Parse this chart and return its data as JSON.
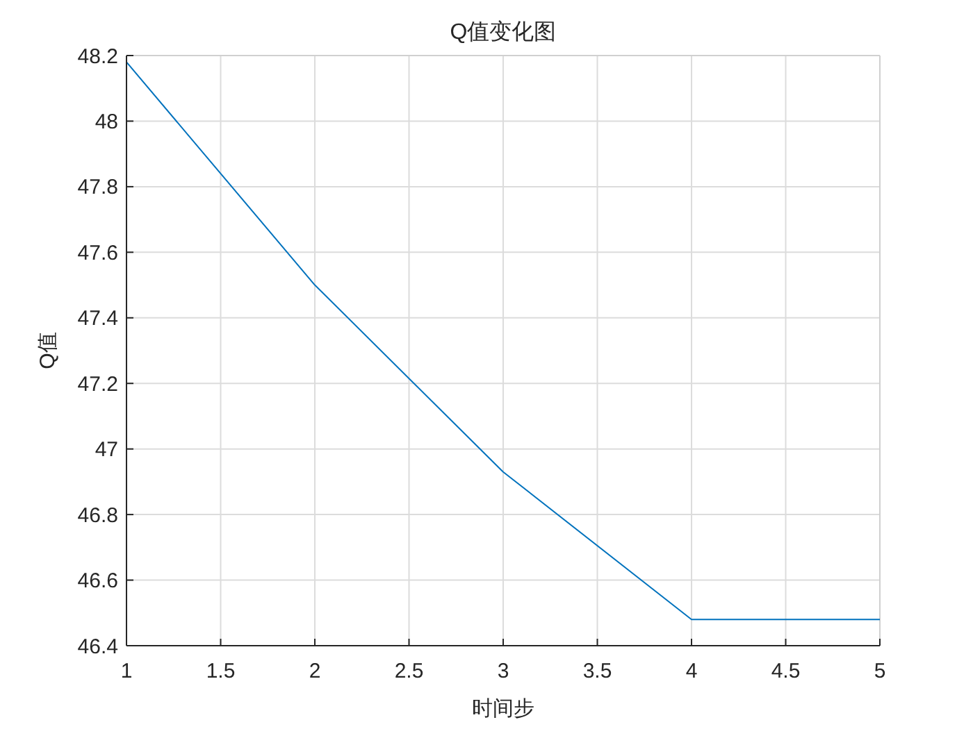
{
  "chart_data": {
    "type": "line",
    "title": "Q值变化图",
    "xlabel": "时间步",
    "ylabel": "Q值",
    "x": [
      1,
      2,
      3,
      4,
      5
    ],
    "series": [
      {
        "color": "#0072bd",
        "values": [
          48.18,
          47.5,
          46.93,
          46.48,
          46.48
        ]
      }
    ],
    "xlim": [
      1,
      5
    ],
    "ylim": [
      46.4,
      48.2
    ],
    "xticks": [
      1,
      1.5,
      2,
      2.5,
      3,
      3.5,
      4,
      4.5,
      5
    ],
    "yticks": [
      46.4,
      46.6,
      46.8,
      47,
      47.2,
      47.4,
      47.6,
      47.8,
      48,
      48.2
    ],
    "grid": true
  }
}
